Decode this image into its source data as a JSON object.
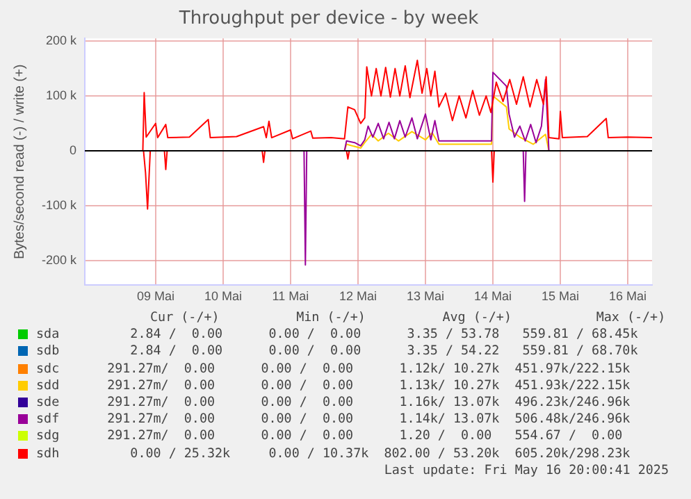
{
  "chart_data": {
    "type": "line",
    "title": "Throughput per device - by week",
    "ylabel": "Bytes/second read (-) / write (+)",
    "xlim": [
      7.95,
      16.36
    ],
    "xticks": [
      {
        "value": 9,
        "label": "09 Mai"
      },
      {
        "value": 10,
        "label": "10 Mai"
      },
      {
        "value": 11,
        "label": "11 Mai"
      },
      {
        "value": 12,
        "label": "12 Mai"
      },
      {
        "value": 13,
        "label": "13 Mai"
      },
      {
        "value": 14,
        "label": "14 Mai"
      },
      {
        "value": 15,
        "label": "15 Mai"
      },
      {
        "value": 16,
        "label": "16 Mai"
      }
    ],
    "ylim": [
      -245000,
      205000
    ],
    "yticks": [
      {
        "value": -200000,
        "label": "-200 k"
      },
      {
        "value": -100000,
        "label": "-100 k"
      },
      {
        "value": 0,
        "label": "0"
      },
      {
        "value": 100000,
        "label": "100 k"
      },
      {
        "value": 200000,
        "label": "200 k"
      }
    ],
    "grid": true,
    "legend": "bottom",
    "marker": "none",
    "line_style": "solid",
    "ref_lines": [
      {
        "axis": "y",
        "value": 0,
        "color": "#000000"
      }
    ],
    "series": [
      {
        "name": "sda",
        "color": "#00cc00"
      },
      {
        "name": "sdb",
        "color": "#0066b3"
      },
      {
        "name": "sdc",
        "color": "#ff8000"
      },
      {
        "name": "sdd",
        "color": "#ffcc00",
        "x": [
          11.8,
          11.83,
          12.04,
          12.1,
          12.2,
          12.3,
          12.45,
          12.6,
          12.8,
          13.0,
          13.1,
          13.2,
          13.98,
          14.0,
          14.2,
          14.24,
          14.4,
          14.6,
          14.78,
          14.83,
          16.36
        ],
        "values": [
          0,
          12000,
          5000,
          15000,
          30000,
          18000,
          32000,
          18000,
          35000,
          20000,
          33000,
          12000,
          12000,
          100000,
          80000,
          40000,
          25000,
          12000,
          30000,
          0,
          0
        ]
      },
      {
        "name": "sde",
        "color": "#330099"
      },
      {
        "name": "sdf",
        "color": "#990099",
        "x": [
          11.8,
          11.83,
          11.95,
          12.04,
          12.1,
          12.15,
          12.22,
          12.3,
          12.38,
          12.46,
          12.54,
          12.62,
          12.7,
          12.8,
          12.88,
          13.0,
          13.08,
          13.14,
          13.2,
          13.6,
          13.98,
          14.0,
          14.2,
          14.24,
          14.32,
          14.4,
          14.48,
          14.56,
          14.64,
          14.72,
          14.78,
          14.83,
          16.36,
          null,
          11.2,
          11.22,
          11.24,
          11.3,
          14.45,
          14.47,
          14.49
        ],
        "values": [
          0,
          18000,
          15000,
          9000,
          20000,
          45000,
          25000,
          50000,
          22000,
          52000,
          22000,
          55000,
          25000,
          60000,
          22000,
          67000,
          20000,
          55000,
          18000,
          18000,
          18000,
          143000,
          118000,
          67000,
          25000,
          45000,
          18000,
          48000,
          15000,
          45000,
          130000,
          0,
          0,
          null,
          0,
          -208000,
          0,
          null,
          0,
          -92000,
          0
        ]
      },
      {
        "name": "sdg",
        "color": "#ccff00"
      },
      {
        "name": "sdh",
        "color": "#ff0000",
        "x": [
          8.81,
          8.83,
          8.86,
          9.0,
          9.03,
          9.15,
          9.18,
          9.5,
          9.78,
          9.81,
          10.2,
          10.6,
          10.64,
          10.68,
          10.72,
          11.0,
          11.03,
          11.3,
          11.33,
          11.6,
          11.8,
          11.85,
          11.95,
          12.04,
          12.1,
          12.13,
          12.2,
          12.27,
          12.34,
          12.41,
          12.48,
          12.55,
          12.62,
          12.7,
          12.77,
          12.88,
          12.95,
          13.02,
          13.08,
          13.14,
          13.2,
          13.3,
          13.4,
          13.5,
          13.6,
          13.7,
          13.8,
          13.9,
          13.97,
          14.05,
          14.15,
          14.25,
          14.35,
          14.45,
          14.55,
          14.65,
          14.75,
          14.79,
          14.83,
          14.98,
          15.0,
          15.03,
          15.4,
          15.68,
          15.71,
          16.0,
          16.36,
          null,
          8.82,
          8.85,
          8.88,
          8.92,
          9.0,
          9.13,
          9.15,
          9.17,
          9.3,
          10.58,
          10.6,
          10.62,
          11.0,
          11.83,
          11.85,
          11.87,
          12.0,
          13.98,
          14.0,
          14.02
        ],
        "values": [
          0,
          106000,
          25000,
          50000,
          24000,
          48000,
          24000,
          25000,
          57000,
          24000,
          26000,
          44000,
          24000,
          54000,
          24000,
          38000,
          22000,
          36000,
          23000,
          24000,
          22000,
          80000,
          75000,
          50000,
          60000,
          153000,
          100000,
          150000,
          100000,
          152000,
          98000,
          150000,
          100000,
          155000,
          97000,
          165000,
          105000,
          150000,
          100000,
          145000,
          80000,
          105000,
          55000,
          100000,
          60000,
          110000,
          65000,
          100000,
          70000,
          125000,
          90000,
          130000,
          85000,
          135000,
          80000,
          130000,
          85000,
          135000,
          24000,
          22000,
          72000,
          24000,
          26000,
          59000,
          24000,
          25000,
          24000,
          null,
          0,
          -40000,
          -106000,
          0,
          null,
          0,
          -34000,
          0,
          null,
          0,
          -21000,
          0,
          null,
          0,
          -15000,
          0,
          null,
          0,
          -57000,
          0
        ]
      }
    ],
    "annotations": [
      "Cur (-/+)          Min (-/+)          Avg (-/+)           Max (-/+)",
      "     2.84 /  0.00      0.00 /  0.00      3.35 / 53.78   559.81 / 68.45k",
      "     2.84 /  0.00      0.00 /  0.00      3.35 / 54.22   559.81 / 68.70k",
      "  291.27m/  0.00      0.00 /  0.00      1.12k/ 10.27k  451.97k/222.15k",
      "  291.27m/  0.00      0.00 /  0.00      1.13k/ 10.27k  451.93k/222.15k",
      "  291.27m/  0.00      0.00 /  0.00      1.16k/ 13.07k  496.23k/246.96k",
      "  291.27m/  0.00      0.00 /  0.00      1.14k/ 13.07k  506.48k/246.96k",
      "  291.27m/  0.00      0.00 /  0.00      1.20 /  0.00   554.67 /  0.00 ",
      "     0.00 / 25.32k     0.00 / 10.37k  802.00 / 53.20k  605.20k/298.23k",
      "Last update: Fri May 16 20:00:41 2025"
    ]
  }
}
